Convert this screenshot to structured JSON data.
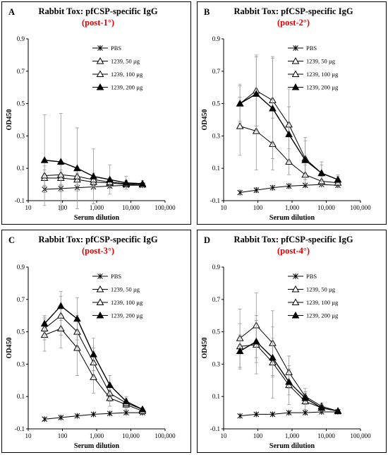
{
  "colors": {
    "title_accent": "#e00000",
    "axis": "#000000",
    "error_bar": "#999999"
  },
  "legend_items": [
    "PBS",
    "1239, 50 µg",
    "1239, 100 µg",
    "1239, 200 µg"
  ],
  "x_tick_labels": [
    "10",
    "100",
    "1,000",
    "10,000",
    "100,000"
  ],
  "y_tick_labels": [
    "-0.1",
    "0.1",
    "0.3",
    "0.5",
    "0.7",
    "0.9"
  ],
  "panels": [
    {
      "label": "A",
      "title": "Rabbit Tox: pfCSP-specific IgG",
      "subtitle": "(post-1°)",
      "xlabel": "Serum dilution",
      "ylabel": "OD450"
    },
    {
      "label": "B",
      "title": "Rabbit Tox: pfCSP-specific IgG",
      "subtitle": "(post-2°)",
      "xlabel": "Serum dilution",
      "ylabel": "OD450"
    },
    {
      "label": "C",
      "title": "Rabbit Tox: pfCSP-specific IgG",
      "subtitle": "(post-3°)",
      "xlabel": "Serum dilution",
      "ylabel": "OD450"
    },
    {
      "label": "D",
      "title": "Rabbit Tox: pfCSP-specific IgG",
      "subtitle": "(post-4°)",
      "xlabel": "Serum dilution",
      "ylabel": "OD450"
    }
  ],
  "chart_data": [
    {
      "type": "line",
      "panel": "A",
      "xscale": "log",
      "xlim": [
        10,
        100000
      ],
      "ylim": [
        -0.1,
        0.9
      ],
      "x": [
        30,
        90,
        270,
        810,
        2430,
        7290,
        21870
      ],
      "series": [
        {
          "name": "PBS",
          "marker": "x",
          "values": [
            -0.03,
            -0.025,
            -0.02,
            -0.015,
            -0.01,
            -0.005,
            -0.005
          ],
          "errors": [
            0.02,
            0.02,
            0.02,
            0.015,
            0.01,
            0.01,
            0.01
          ]
        },
        {
          "name": "1239, 50 µg",
          "marker": "open-triangle",
          "values": [
            0.04,
            0.04,
            0.03,
            0.015,
            0.01,
            0.0,
            0.0
          ],
          "errors": [
            0.05,
            0.05,
            0.04,
            0.03,
            0.02,
            0.015,
            0.01
          ]
        },
        {
          "name": "1239, 100 µg",
          "marker": "open-triangle",
          "values": [
            0.055,
            0.06,
            0.05,
            0.03,
            0.015,
            0.005,
            0.0
          ],
          "errors": [
            0.06,
            0.06,
            0.05,
            0.04,
            0.025,
            0.02,
            0.01
          ]
        },
        {
          "name": "1239, 200 µg",
          "marker": "filled-triangle",
          "values": [
            0.15,
            0.14,
            0.1,
            0.05,
            0.03,
            0.01,
            0.005
          ],
          "errors": [
            0.28,
            0.3,
            0.25,
            0.17,
            0.09,
            0.04,
            0.02
          ]
        }
      ]
    },
    {
      "type": "line",
      "panel": "B",
      "xscale": "log",
      "xlim": [
        10,
        100000
      ],
      "ylim": [
        -0.1,
        0.9
      ],
      "x": [
        30,
        90,
        270,
        810,
        2430,
        7290,
        21870
      ],
      "series": [
        {
          "name": "PBS",
          "marker": "x",
          "values": [
            -0.05,
            -0.035,
            -0.02,
            -0.01,
            -0.005,
            0.0,
            -0.005
          ],
          "errors": [
            0.015,
            0.015,
            0.015,
            0.015,
            0.01,
            0.01,
            0.01
          ]
        },
        {
          "name": "1239, 50 µg",
          "marker": "open-triangle",
          "values": [
            0.36,
            0.33,
            0.25,
            0.14,
            0.06,
            0.02,
            0.01
          ],
          "errors": [
            0.18,
            0.24,
            0.16,
            0.08,
            0.06,
            0.03,
            0.02
          ]
        },
        {
          "name": "1239, 100 µg",
          "marker": "open-triangle",
          "values": [
            0.5,
            0.58,
            0.52,
            0.37,
            0.16,
            0.07,
            0.03
          ],
          "errors": [
            0.12,
            0.22,
            0.27,
            0.22,
            0.13,
            0.07,
            0.03
          ]
        },
        {
          "name": "1239, 200 µg",
          "marker": "filled-triangle",
          "values": [
            0.5,
            0.56,
            0.47,
            0.31,
            0.15,
            0.07,
            0.03
          ],
          "errors": [
            0.11,
            0.23,
            0.31,
            0.17,
            0.12,
            0.05,
            0.02
          ]
        }
      ]
    },
    {
      "type": "line",
      "panel": "C",
      "xscale": "log",
      "xlim": [
        10,
        100000
      ],
      "ylim": [
        -0.1,
        0.9
      ],
      "x": [
        30,
        90,
        270,
        810,
        2430,
        7290,
        21870
      ],
      "series": [
        {
          "name": "PBS",
          "marker": "x",
          "values": [
            -0.04,
            -0.03,
            -0.02,
            -0.01,
            -0.005,
            0.0,
            0.0
          ],
          "errors": [
            0.01,
            0.01,
            0.01,
            0.01,
            0.01,
            0.01,
            0.01
          ]
        },
        {
          "name": "1239, 50 µg",
          "marker": "open-triangle",
          "values": [
            0.48,
            0.52,
            0.4,
            0.22,
            0.09,
            0.05,
            0.01
          ],
          "errors": [
            0.1,
            0.12,
            0.17,
            0.1,
            0.05,
            0.03,
            0.01
          ]
        },
        {
          "name": "1239, 100 µg",
          "marker": "open-triangle",
          "values": [
            0.52,
            0.6,
            0.5,
            0.31,
            0.12,
            0.06,
            0.02
          ],
          "errors": [
            0.07,
            0.12,
            0.1,
            0.09,
            0.05,
            0.03,
            0.01
          ]
        },
        {
          "name": "1239, 200 µg",
          "marker": "filled-triangle",
          "values": [
            0.55,
            0.66,
            0.58,
            0.36,
            0.17,
            0.07,
            0.02
          ],
          "errors": [
            0.05,
            0.09,
            0.13,
            0.1,
            0.06,
            0.03,
            0.01
          ]
        }
      ]
    },
    {
      "type": "line",
      "panel": "D",
      "xscale": "log",
      "xlim": [
        10,
        100000
      ],
      "ylim": [
        -0.1,
        0.9
      ],
      "x": [
        30,
        90,
        270,
        810,
        2430,
        7290,
        21870
      ],
      "series": [
        {
          "name": "PBS",
          "marker": "x",
          "values": [
            -0.02,
            -0.01,
            -0.01,
            0.0,
            0.0,
            0.005,
            0.005
          ],
          "errors": [
            0.01,
            0.01,
            0.01,
            0.01,
            0.01,
            0.01,
            0.01
          ]
        },
        {
          "name": "1239, 50 µg",
          "marker": "open-triangle",
          "values": [
            0.41,
            0.42,
            0.31,
            0.17,
            0.07,
            0.03,
            0.01
          ],
          "errors": [
            0.14,
            0.18,
            0.22,
            0.12,
            0.05,
            0.02,
            0.01
          ]
        },
        {
          "name": "1239, 100 µg",
          "marker": "open-triangle",
          "values": [
            0.46,
            0.54,
            0.43,
            0.25,
            0.1,
            0.04,
            0.01
          ],
          "errors": [
            0.18,
            0.2,
            0.2,
            0.1,
            0.05,
            0.02,
            0.01
          ]
        },
        {
          "name": "1239, 200 µg",
          "marker": "filled-triangle",
          "values": [
            0.38,
            0.44,
            0.34,
            0.19,
            0.09,
            0.03,
            0.01
          ],
          "errors": [
            0.1,
            0.13,
            0.12,
            0.08,
            0.04,
            0.02,
            0.01
          ]
        }
      ]
    }
  ]
}
